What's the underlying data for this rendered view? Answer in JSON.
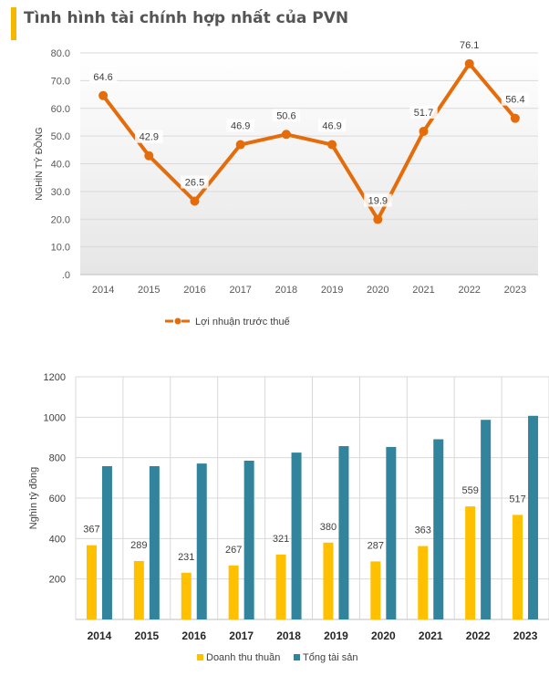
{
  "page_title": "Tình hình tài chính hợp nhất của PVN",
  "colors": {
    "line": "#e46c0a",
    "revenue": "#ffc000",
    "assets": "#31849b",
    "title_accent": "#f5b800"
  },
  "chart_data": [
    {
      "type": "line",
      "title": "",
      "categories": [
        "2014",
        "2015",
        "2016",
        "2017",
        "2018",
        "2019",
        "2020",
        "2021",
        "2022",
        "2023"
      ],
      "series": [
        {
          "name": "Lợi nhuận trước thuế",
          "values": [
            64.6,
            42.9,
            26.5,
            46.9,
            50.6,
            46.9,
            19.9,
            51.7,
            76.1,
            56.4
          ],
          "data_labels": [
            "64.6",
            "42.9",
            "26.5",
            "46.9",
            "50.6",
            "46.9",
            "19.9",
            "51.7",
            "76.1",
            "56.4"
          ]
        }
      ],
      "ylabel": "NGHÌN TỶ ĐỒNG",
      "xlabel": "",
      "ylim": [
        0,
        80
      ],
      "yticks": [
        0,
        10,
        20,
        30,
        40,
        50,
        60,
        70,
        80
      ],
      "ytick_labels": [
        ".0",
        "10.0",
        "20.0",
        "30.0",
        "40.0",
        "50.0",
        "60.0",
        "70.0",
        "80.0"
      ],
      "grid": true,
      "legend_position": "bottom"
    },
    {
      "type": "bar",
      "title": "",
      "categories": [
        "2014",
        "2015",
        "2016",
        "2017",
        "2018",
        "2019",
        "2020",
        "2021",
        "2022",
        "2023"
      ],
      "series": [
        {
          "name": "Doanh thu thuần",
          "values": [
            367,
            289,
            231,
            267,
            321,
            380,
            287,
            363,
            559,
            517
          ],
          "data_labels": [
            "367",
            "289",
            "231",
            "267",
            "321",
            "380",
            "287",
            "363",
            "559",
            "517"
          ]
        },
        {
          "name": "Tổng tài sản",
          "values": [
            758,
            758,
            771,
            785,
            825,
            857,
            853,
            891,
            987,
            1007
          ]
        }
      ],
      "ylabel": "Nghìn tỷ đồng",
      "xlabel": "",
      "ylim": [
        0,
        1200
      ],
      "yticks": [
        200,
        400,
        600,
        800,
        1000,
        1200
      ],
      "ytick_labels": [
        "200",
        "400",
        "600",
        "800",
        "1000",
        "1200"
      ],
      "grid": true,
      "legend_position": "bottom"
    }
  ]
}
